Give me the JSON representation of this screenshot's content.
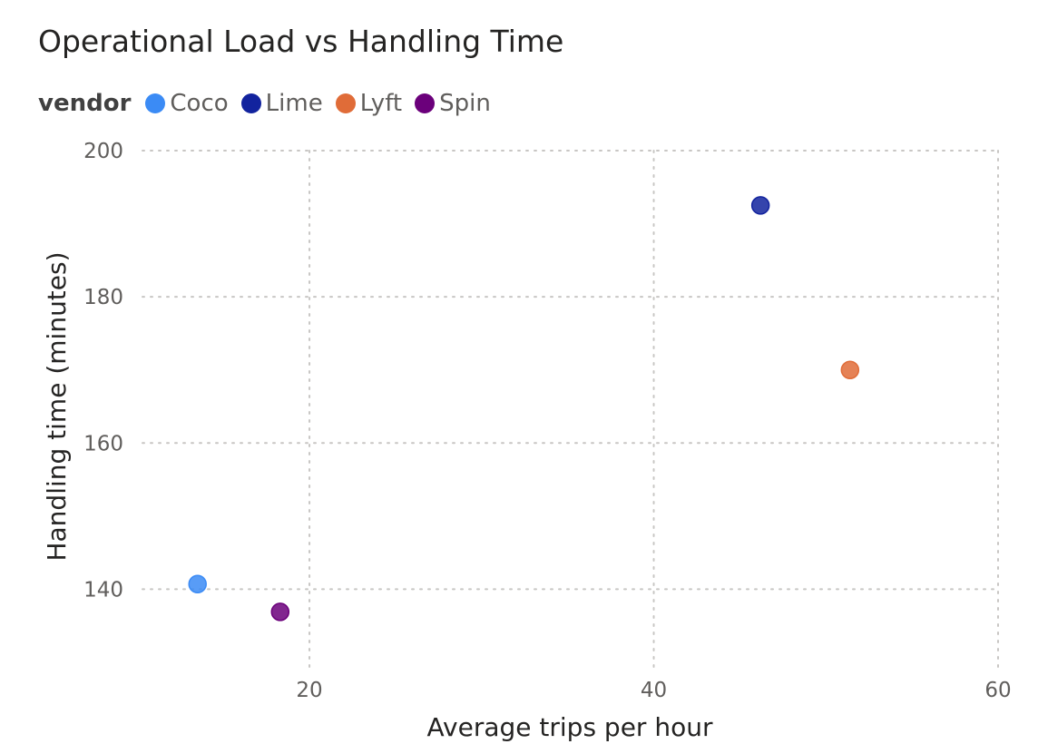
{
  "chart_data": {
    "type": "scatter",
    "title": "Operational Load vs Handling Time",
    "xlabel": "Average trips per hour",
    "ylabel": "Handling time (minutes)",
    "legend_title": "vendor",
    "legend_position": "top-left",
    "grid": true,
    "xlim": [
      10.3,
      60
    ],
    "ylim": [
      129,
      200
    ],
    "x_ticks": [
      20,
      40,
      60
    ],
    "y_ticks": [
      140,
      160,
      180,
      200
    ],
    "series": [
      {
        "name": "Coco",
        "color": "#3b8bf5",
        "points": [
          {
            "x": 13.5,
            "y": 140.7
          }
        ]
      },
      {
        "name": "Lime",
        "color": "#12239e",
        "points": [
          {
            "x": 46.2,
            "y": 192.5
          }
        ]
      },
      {
        "name": "Lyft",
        "color": "#e06c38",
        "points": [
          {
            "x": 51.4,
            "y": 170.0
          }
        ]
      },
      {
        "name": "Spin",
        "color": "#6b007b",
        "points": [
          {
            "x": 18.3,
            "y": 136.9
          }
        ]
      }
    ]
  }
}
